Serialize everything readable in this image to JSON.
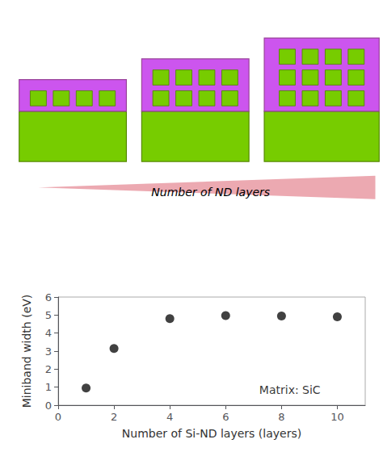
{
  "chart_data": {
    "type": "scatter",
    "x": [
      1,
      2,
      4,
      6,
      8,
      10
    ],
    "values": [
      0.95,
      3.15,
      4.8,
      4.97,
      4.95,
      4.9
    ],
    "color": "#111111",
    "xlabel": "Number of Si-ND layers (layers)",
    "ylabel": "Miniband width (eV)",
    "xlim": [
      0,
      11
    ],
    "ylim": [
      0,
      6
    ],
    "xticks": [
      0,
      2,
      4,
      6,
      8,
      10
    ],
    "yticks": [
      0,
      1,
      2,
      3,
      4,
      5,
      6
    ],
    "grid": false,
    "annotations": [
      {
        "text": "Matrix: SiC",
        "x": 8.3,
        "y": 0.45
      },
      {
        "text": "Number of ND layers"
      }
    ]
  }
}
